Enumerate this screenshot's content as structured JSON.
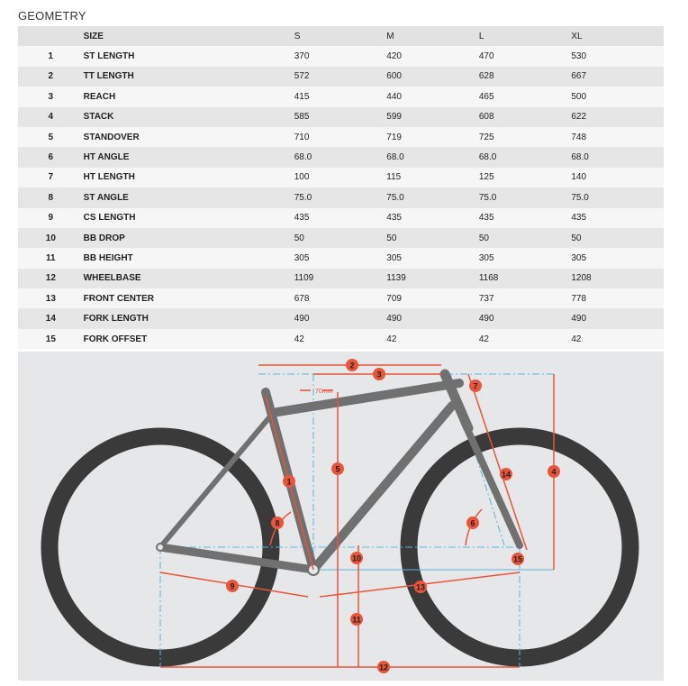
{
  "title": "GEOMETRY",
  "table": {
    "headers": [
      "",
      "SIZE",
      "S",
      "M",
      "L",
      "XL"
    ],
    "rows": [
      [
        "1",
        "ST LENGTH",
        "370",
        "420",
        "470",
        "530"
      ],
      [
        "2",
        "TT LENGTH",
        "572",
        "600",
        "628",
        "667"
      ],
      [
        "3",
        "REACH",
        "415",
        "440",
        "465",
        "500"
      ],
      [
        "4",
        "STACK",
        "585",
        "599",
        "608",
        "622"
      ],
      [
        "5",
        "STANDOVER",
        "710",
        "719",
        "725",
        "748"
      ],
      [
        "6",
        "HT ANGLE",
        "68.0",
        "68.0",
        "68.0",
        "68.0"
      ],
      [
        "7",
        "HT LENGTH",
        "100",
        "115",
        "125",
        "140"
      ],
      [
        "8",
        "ST ANGLE",
        "75.0",
        "75.0",
        "75.0",
        "75.0"
      ],
      [
        "9",
        "CS LENGTH",
        "435",
        "435",
        "435",
        "435"
      ],
      [
        "10",
        "BB DROP",
        "50",
        "50",
        "50",
        "50"
      ],
      [
        "11",
        "BB HEIGHT",
        "305",
        "305",
        "305",
        "305"
      ],
      [
        "12",
        "WHEELBASE",
        "1109",
        "1139",
        "1168",
        "1208"
      ],
      [
        "13",
        "FRONT CENTER",
        "678",
        "709",
        "737",
        "778"
      ],
      [
        "14",
        "FORK LENGTH",
        "490",
        "490",
        "490",
        "490"
      ],
      [
        "15",
        "FORK OFFSET",
        "42",
        "42",
        "42",
        "42"
      ]
    ]
  },
  "diagram": {
    "offset_label": "70mm",
    "markers": [
      "1",
      "2",
      "3",
      "4",
      "5",
      "6",
      "7",
      "8",
      "9",
      "10",
      "11",
      "12",
      "13",
      "14",
      "15"
    ],
    "colors": {
      "dimension": "#e8553a",
      "guide": "#5ab4e0",
      "frame": "#707070",
      "tire": "#3a3a3a",
      "background": "#e6e7e8"
    }
  }
}
